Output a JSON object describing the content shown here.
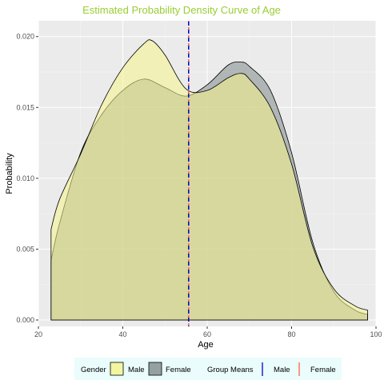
{
  "chart_data": {
    "type": "area",
    "title": "Estimated Probability Density Curve of Age",
    "title_color": "#9ACD32",
    "xlabel": "Age",
    "ylabel": "Probability",
    "xlim": [
      20,
      100
    ],
    "ylim": [
      0,
      0.021
    ],
    "x_ticks": [
      20,
      40,
      60,
      80,
      100
    ],
    "y_ticks": [
      0.0,
      0.005,
      0.01,
      0.015,
      0.02
    ],
    "x_tick_labels": [
      "20",
      "40",
      "60",
      "80",
      "100"
    ],
    "y_tick_labels": [
      "0.000",
      "0.005",
      "0.010",
      "0.015",
      "0.020"
    ],
    "grid": true,
    "panel_background": "#EBEBEB",
    "series": [
      {
        "name": "Female",
        "fill": "#7F8A8A",
        "x": [
          23,
          25,
          30,
          35,
          40,
          45,
          50,
          55,
          60,
          65,
          68,
          70,
          75,
          80,
          85,
          90,
          95,
          98
        ],
        "y": [
          0.0042,
          0.0068,
          0.0118,
          0.0145,
          0.0162,
          0.017,
          0.0164,
          0.0158,
          0.0166,
          0.018,
          0.0182,
          0.0179,
          0.0162,
          0.0118,
          0.0055,
          0.002,
          0.0007,
          0.0004
        ]
      },
      {
        "name": "Male",
        "fill": "#F5F48A",
        "x": [
          23,
          25,
          30,
          35,
          40,
          45,
          47,
          50,
          55,
          60,
          65,
          68,
          70,
          75,
          80,
          85,
          90,
          95,
          98
        ],
        "y": [
          0.0064,
          0.0085,
          0.0117,
          0.0152,
          0.0178,
          0.0195,
          0.0197,
          0.0187,
          0.0163,
          0.0162,
          0.0171,
          0.0174,
          0.017,
          0.015,
          0.011,
          0.0052,
          0.0022,
          0.001,
          0.0007
        ]
      }
    ],
    "group_means": [
      {
        "name": "Male",
        "value": 55.6,
        "color": "#0000CD"
      },
      {
        "name": "Female",
        "value": 55.6,
        "color": "#FF6347"
      }
    ],
    "legend": {
      "position": "bottom",
      "gender_title": "Gender",
      "gender_items": [
        "Male",
        "Female"
      ],
      "means_title": "Group Means",
      "means_items": [
        "Male",
        "Female"
      ],
      "background": "#EAFCFC"
    }
  }
}
